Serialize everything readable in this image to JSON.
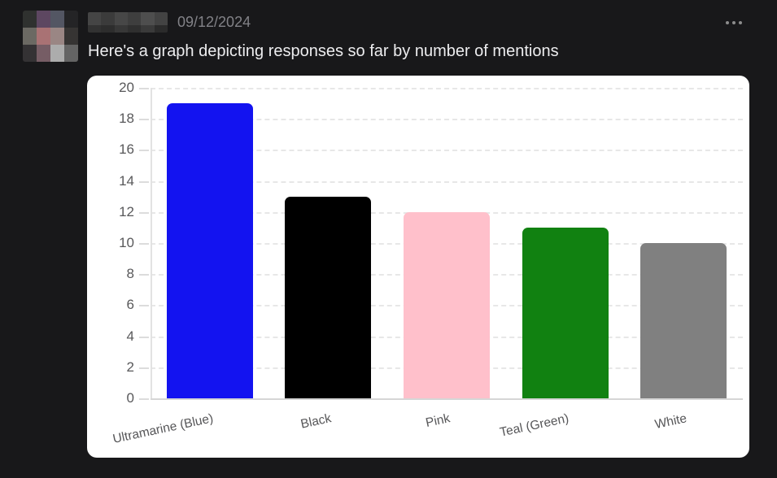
{
  "message": {
    "timestamp": "09/12/2024",
    "text": "Here's a graph depicting responses so far by number of mentions",
    "more_options_icon": "horizontal-ellipsis"
  },
  "avatar": {
    "description": "pixelated-blurred-avatar",
    "pixels": [
      "#2f312f",
      "#5d4761",
      "#535663",
      "#242426",
      "#6b6963",
      "#a97274",
      "#9a8684",
      "#363433",
      "#343234",
      "#765d65",
      "#acacac",
      "#646464"
    ]
  },
  "redacted_username": {
    "description": "pixelated-blurred-username",
    "pixels": [
      "#454545",
      "#3b3b3b",
      "#474747",
      "#3e3e3e",
      "#4e4e4e",
      "#434343",
      "#323232",
      "#2d2d2d",
      "#373737",
      "#2f2f2f",
      "#3a3a3a",
      "#2b2b2b"
    ]
  },
  "chart_data": {
    "type": "bar",
    "categories": [
      "Ultramarine (Blue)",
      "Black",
      "Pink",
      "Teal (Green)",
      "White"
    ],
    "values": [
      19,
      13,
      12,
      11,
      10
    ],
    "bar_colors": [
      "#1313f0",
      "#000000",
      "#ffc0cb",
      "#118111",
      "#808080"
    ],
    "title": "",
    "xlabel": "",
    "ylabel": "",
    "ylim": [
      0,
      20
    ],
    "ytick_step": 2,
    "grid": true,
    "grid_style": "dashed",
    "legend": false,
    "background": "#ffffff",
    "tick_label_color": "#58585a",
    "x_label_rotation_deg": -12
  },
  "colors": {
    "page_background": "#18181a",
    "message_text": "#ededef",
    "timestamp_text": "#828287",
    "card_background": "#ffffff"
  }
}
